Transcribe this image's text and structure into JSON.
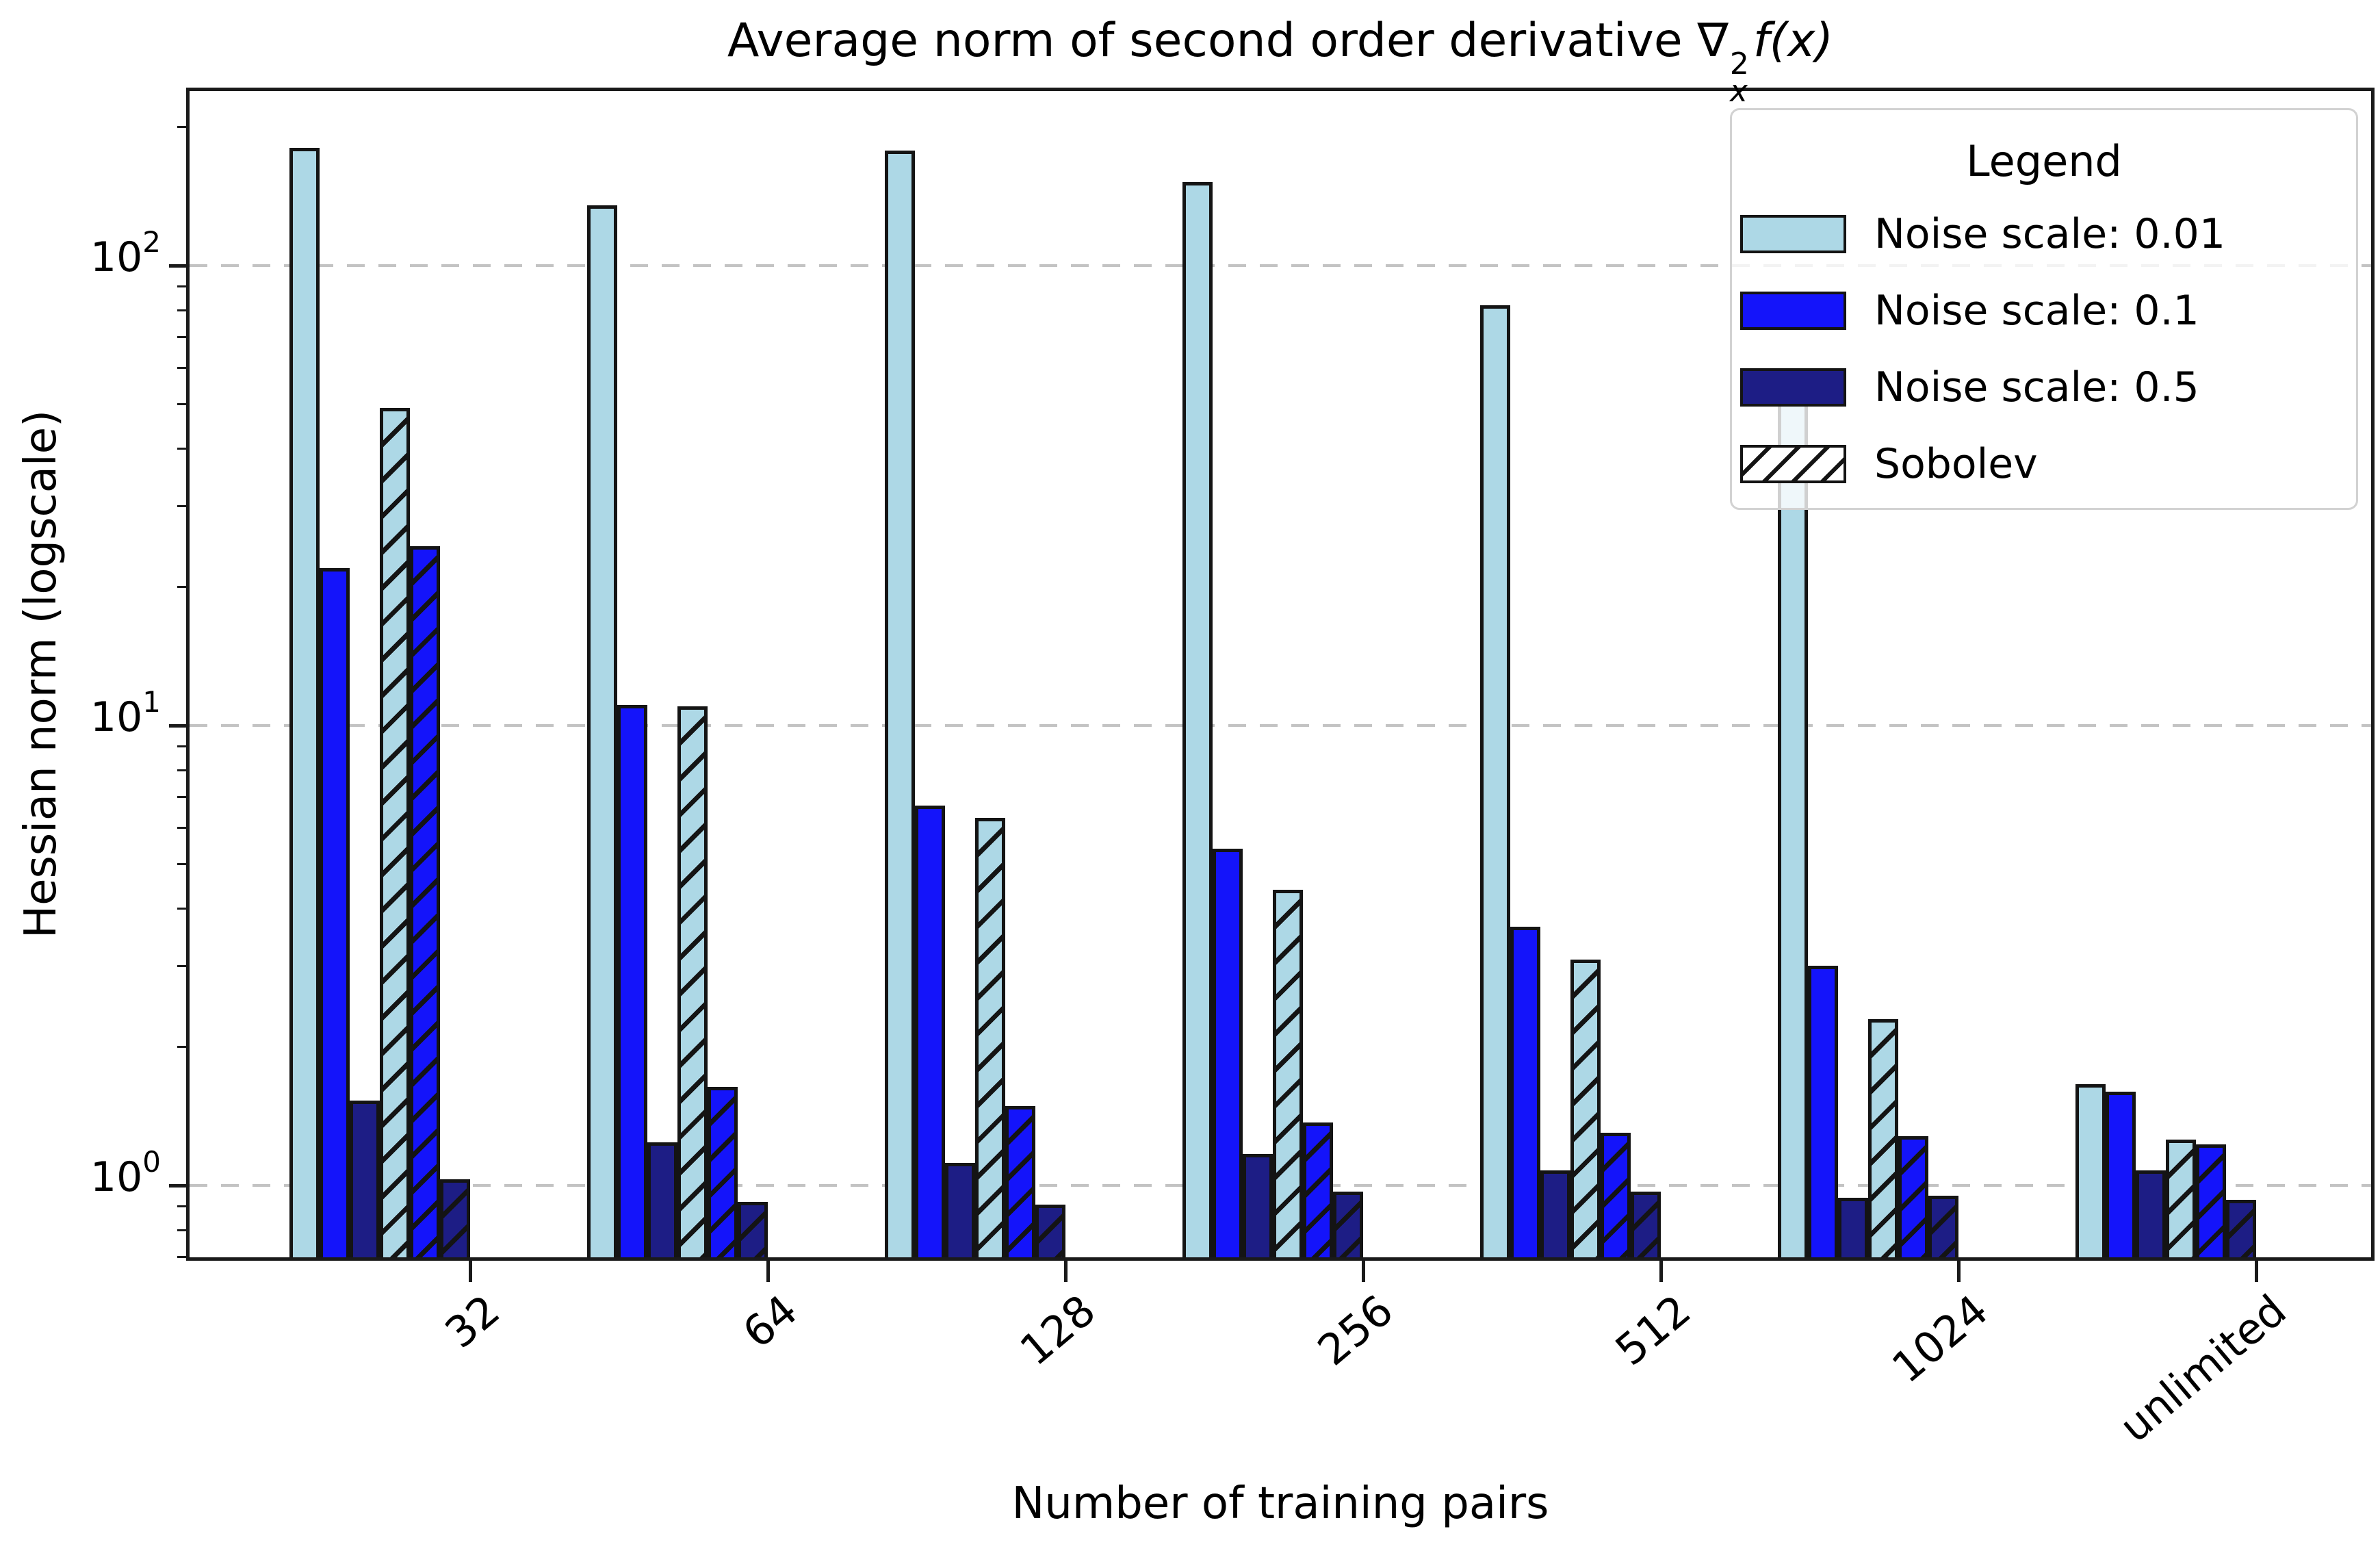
{
  "figure": {
    "title_prefix": "Average norm of second order derivative ",
    "nabla": "∇",
    "nabla_sup": "2",
    "nabla_sub": "x",
    "title_func": "f(x)"
  },
  "chart_data": {
    "type": "bar",
    "title": "Average norm of second order derivative ∇²ₓf(x)",
    "xlabel": "Number of training pairs",
    "ylabel": "Hessian norm (logscale)",
    "yscale": "log",
    "ylim": [
      0.7,
      240
    ],
    "grid": {
      "axis": "y",
      "style": "dashed",
      "color": "#c3c3c3",
      "at_values": [
        100,
        10,
        1
      ]
    },
    "xtick_rotation": 40,
    "categories": [
      "32",
      "64",
      "128",
      "256",
      "512",
      "1024",
      "unlimited"
    ],
    "y_ticks": [
      {
        "value": 100,
        "base": "10",
        "exp": "2"
      },
      {
        "value": 10,
        "base": "10",
        "exp": "1"
      },
      {
        "value": 1,
        "base": "10",
        "exp": "0"
      }
    ],
    "series": [
      {
        "name": "Noise scale: 0.01",
        "color": "#ADD8E6",
        "hatch": false,
        "values": [
          180,
          135,
          178,
          152,
          82,
          55,
          1.66
        ]
      },
      {
        "name": "Noise scale: 0.1",
        "color": "#1414FA",
        "hatch": false,
        "values": [
          22,
          11.1,
          6.7,
          5.4,
          3.65,
          3.0,
          1.6
        ]
      },
      {
        "name": "Noise scale: 0.5",
        "color": "#1D1D85",
        "hatch": false,
        "values": [
          1.53,
          1.24,
          1.12,
          1.17,
          1.08,
          0.94,
          1.08
        ]
      },
      {
        "name": "Sobolev (noise 0.01)",
        "color": "#ADD8E6",
        "hatch": true,
        "values": [
          49,
          11.0,
          6.3,
          4.4,
          3.1,
          2.3,
          1.26
        ]
      },
      {
        "name": "Sobolev (noise 0.1)",
        "color": "#1414FA",
        "hatch": true,
        "values": [
          24.5,
          1.64,
          1.49,
          1.37,
          1.3,
          1.28,
          1.23
        ]
      },
      {
        "name": "Sobolev (noise 0.5)",
        "color": "#1D1D85",
        "hatch": true,
        "values": [
          1.03,
          0.92,
          0.91,
          0.97,
          0.97,
          0.95,
          0.93
        ]
      }
    ],
    "legend": {
      "title": "Legend",
      "position": "upper right",
      "entries": [
        {
          "label": "Noise scale: 0.01",
          "color": "#ADD8E6",
          "hatch": false
        },
        {
          "label": "Noise scale: 0.1",
          "color": "#1414FA",
          "hatch": false
        },
        {
          "label": "Noise scale: 0.5",
          "color": "#1D1D85",
          "hatch": false
        },
        {
          "label": "Sobolev",
          "color": "#FFFFFF",
          "hatch": true
        }
      ]
    }
  }
}
